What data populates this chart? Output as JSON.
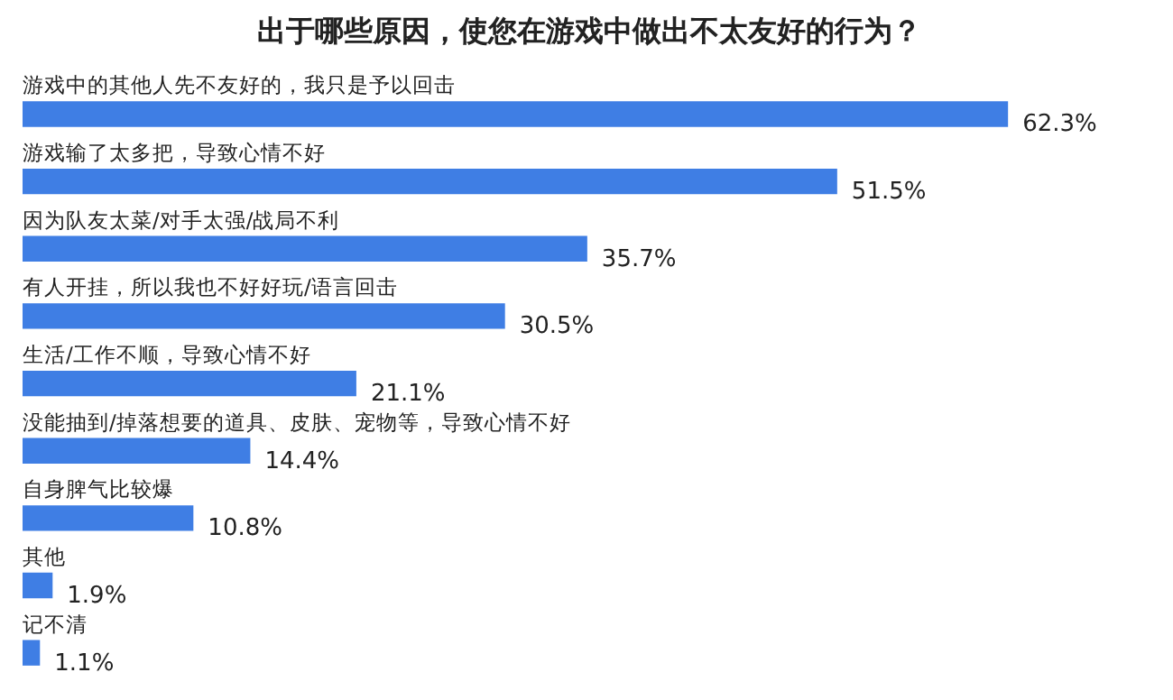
{
  "chart_data": {
    "type": "bar",
    "orientation": "horizontal",
    "title": "出于哪些原因，使您在游戏中做出不太友好的行为？",
    "categories": [
      "游戏中的其他人先不友好的，我只是予以回击",
      "游戏输了太多把，导致心情不好",
      "因为队友太菜/对手太强/战局不利",
      "有人开挂，所以我也不好好玩/语言回击",
      "生活/工作不顺，导致心情不好",
      "没能抽到/掉落想要的道具、皮肤、宠物等，导致心情不好",
      "自身脾气比较爆",
      "其他",
      "记不清"
    ],
    "values": [
      62.3,
      51.5,
      35.7,
      30.5,
      21.1,
      14.4,
      10.8,
      1.9,
      1.1
    ],
    "value_labels": [
      "62.3%",
      "51.5%",
      "35.7%",
      "30.5%",
      "21.1%",
      "14.4%",
      "10.8%",
      "1.9%",
      "1.1%"
    ],
    "color": "#3f7ee4"
  }
}
